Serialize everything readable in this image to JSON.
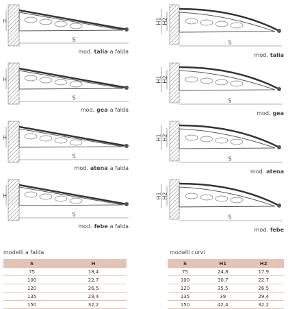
{
  "left_diagrams": {
    "h_label": "H",
    "s_label": "S",
    "prefix": "mod.",
    "suffix": "a falda",
    "models": [
      "talia",
      "gea",
      "atena",
      "febe"
    ]
  },
  "right_diagrams": {
    "h1_label": "H1",
    "h2_label": "H2",
    "s_label": "S",
    "prefix": "mod.",
    "models": [
      "talia",
      "gea",
      "atena",
      "febe"
    ]
  },
  "tables": [
    {
      "title": "modelli a falda",
      "headers": [
        "S",
        "H"
      ],
      "rows": [
        [
          "75",
          "18,4"
        ],
        [
          "100",
          "22,7"
        ],
        [
          "120",
          "26,5"
        ],
        [
          "135",
          "29,4"
        ],
        [
          "150",
          "32,2"
        ]
      ]
    },
    {
      "title": "modelli curvi",
      "headers": [
        "S",
        "H1",
        "H2"
      ],
      "rows": [
        [
          "75",
          "24,8",
          "17,9"
        ],
        [
          "100",
          "30,7",
          "22,7"
        ],
        [
          "120",
          "35,5",
          "26,5"
        ],
        [
          "135",
          "39",
          "29,4"
        ],
        [
          "150",
          "42,4",
          "32,2"
        ]
      ]
    }
  ]
}
